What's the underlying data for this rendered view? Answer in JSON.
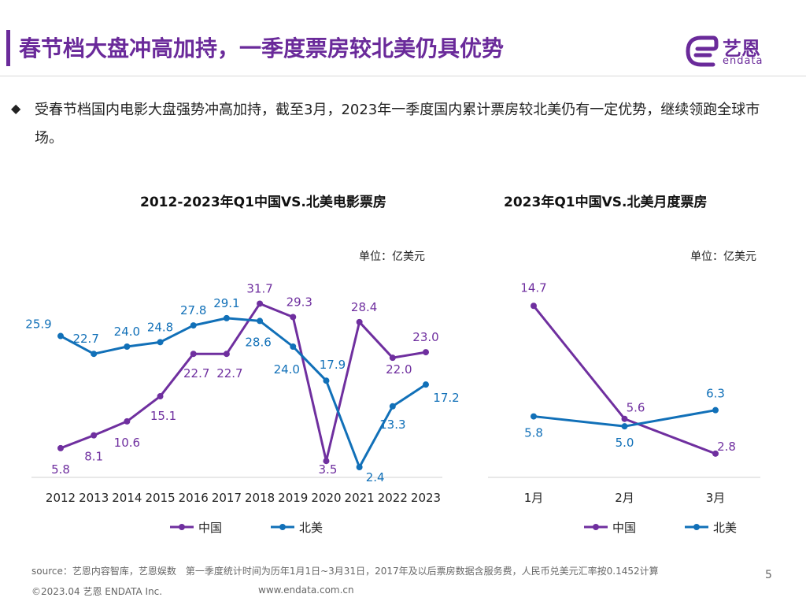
{
  "header": {
    "title": "春节档大盘冲高加持，一季度票房较北美仍具优势",
    "logo_cn": "艺恩",
    "logo_en": "endata"
  },
  "summary": {
    "bullet": "◆",
    "text": "受春节档国内电影大盘强势冲高加持，截至3月，2023年一季度国内累计票房较北美仍有一定优势，继续领跑全球市场。"
  },
  "chart_data": [
    {
      "type": "line",
      "title": "2012-2023年Q1中国VS.北美电影票房",
      "unit": "单位：亿美元",
      "categories": [
        "2012",
        "2013",
        "2014",
        "2015",
        "2016",
        "2017",
        "2018",
        "2019",
        "2020",
        "2021",
        "2022",
        "2023"
      ],
      "series": [
        {
          "name": "中国",
          "color": "#6f2f9f",
          "values": [
            5.8,
            8.1,
            10.6,
            15.1,
            22.7,
            22.7,
            31.7,
            29.3,
            3.5,
            28.4,
            22.0,
            23.0
          ]
        },
        {
          "name": "北美",
          "color": "#1170b8",
          "values": [
            25.9,
            22.7,
            24.0,
            24.8,
            27.8,
            29.1,
            28.6,
            24.0,
            17.9,
            2.4,
            13.3,
            17.2
          ]
        }
      ],
      "ylim": [
        0,
        36
      ],
      "legend": "bottom"
    },
    {
      "type": "line",
      "title": "2023年Q1中国VS.北美月度票房",
      "unit": "单位：亿美元",
      "categories": [
        "1月",
        "2月",
        "3月"
      ],
      "series": [
        {
          "name": "中国",
          "color": "#6f2f9f",
          "values": [
            14.7,
            5.6,
            2.8
          ]
        },
        {
          "name": "北美",
          "color": "#1170b8",
          "values": [
            5.8,
            5.0,
            6.3
          ]
        }
      ],
      "ylim": [
        0,
        17
      ],
      "legend": "bottom"
    }
  ],
  "footer": {
    "source": "source：艺恩内容智库，艺恩娱数　第一季度统计时间为历年1月1日~3月31日，2017年及以后票房数据含服务费，人民币兑美元汇率按0.1452计算",
    "copyright": "©2023.04 艺恩 ENDATA Inc.",
    "url": "www.endata.com.cn",
    "page": "5"
  }
}
